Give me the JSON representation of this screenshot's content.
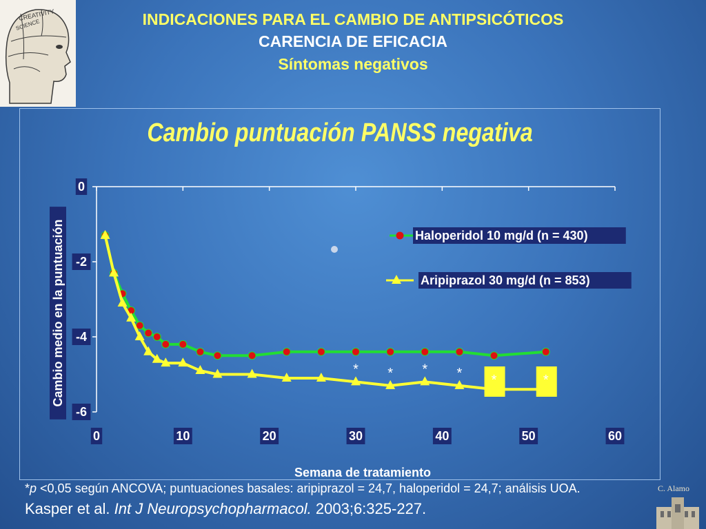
{
  "header": {
    "line1": "INDICACIONES PARA EL CAMBIO DE ANTIPSICÓTICOS",
    "line2": "CARENCIA DE EFICACIA",
    "line3": "Síntomas negativos"
  },
  "logo": {
    "words": [
      "CREATIVITY",
      "SCIENCE"
    ]
  },
  "chart_data": {
    "type": "line",
    "title": "Cambio puntuación PANSS negativa",
    "xlabel": "Semana de tratamiento",
    "ylabel": "Cambio medio en la puntuación",
    "xlim": [
      0,
      60
    ],
    "ylim": [
      -6,
      0
    ],
    "xticks": [
      "0",
      "10",
      "20",
      "30",
      "40",
      "50",
      "60"
    ],
    "yticks": [
      "0",
      "-2",
      "-4",
      "-6"
    ],
    "legend_position": "top-right",
    "series": [
      {
        "name": "Haloperidol 10 mg/d (n = 430)",
        "color": "#22dd33",
        "marker_color": "#dd1111",
        "marker": "circle",
        "x": [
          1,
          2,
          3,
          4,
          5,
          6,
          7,
          8,
          10,
          12,
          14,
          18,
          22,
          26,
          30,
          34,
          38,
          42,
          46,
          52
        ],
        "y": [
          -1.3,
          -2.3,
          -2.85,
          -3.3,
          -3.7,
          -3.9,
          -4.0,
          -4.2,
          -4.2,
          -4.4,
          -4.5,
          -4.5,
          -4.4,
          -4.4,
          -4.4,
          -4.4,
          -4.4,
          -4.4,
          -4.5,
          -4.4
        ]
      },
      {
        "name": "Aripiprazol 30 mg/d (n = 853)",
        "color": "#ffff33",
        "marker_color": "#ffff33",
        "marker": "triangle",
        "x": [
          1,
          2,
          3,
          4,
          5,
          6,
          7,
          8,
          10,
          12,
          14,
          18,
          22,
          26,
          30,
          34,
          38,
          42,
          46,
          52
        ],
        "y": [
          -1.3,
          -2.3,
          -3.1,
          -3.5,
          -4.0,
          -4.4,
          -4.6,
          -4.7,
          -4.7,
          -4.9,
          -5.0,
          -5.0,
          -5.1,
          -5.1,
          -5.2,
          -5.3,
          -5.2,
          -5.3,
          -5.4,
          -5.4
        ]
      }
    ],
    "significance": {
      "symbol": "*",
      "x": [
        30,
        34,
        38,
        42,
        46,
        52
      ],
      "boxed_x": [
        46,
        52
      ]
    }
  },
  "footnote": {
    "prefix": "*",
    "p": "p",
    "text": " <0,05 según ANCOVA; puntuaciones basales: aripiprazol = 24,7, haloperidol = 24,7; análisis UOA."
  },
  "citation": {
    "authors": "Kasper et al. ",
    "journal": "Int J Neuropsychopharmacol.",
    "rest": " 2003;6:325-227."
  },
  "author_mark": "C. Alamo"
}
